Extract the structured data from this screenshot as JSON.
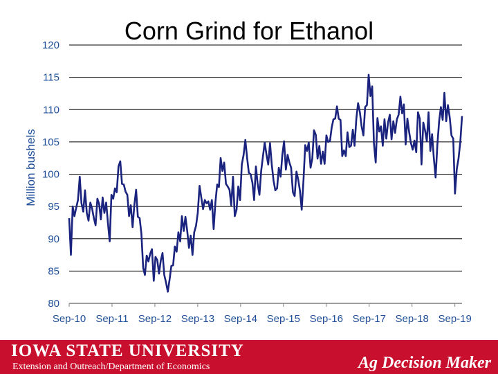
{
  "chart_data": {
    "type": "line",
    "title": "Corn Grind for Ethanol",
    "ylabel": "Million bushels",
    "xlabel": "",
    "ylim": [
      80,
      120
    ],
    "yticks": [
      80,
      85,
      90,
      95,
      100,
      105,
      110,
      115,
      120
    ],
    "xticks": [
      "Sep-10",
      "Sep-11",
      "Sep-12",
      "Sep-13",
      "Sep-14",
      "Sep-15",
      "Sep-16",
      "Sep-17",
      "Sep-18",
      "Sep-19"
    ],
    "x_start": "Sep-10",
    "x_end": "Nov-19",
    "grid": "horizontal",
    "line_color": "#1a237e",
    "series": [
      {
        "name": "",
        "values": [
          93.2,
          87.5,
          95.0,
          93.5,
          94.8,
          96.0,
          99.6,
          95.5,
          94.2,
          97.5,
          94.0,
          92.8,
          95.6,
          94.7,
          93.2,
          92.1,
          96.2,
          95.4,
          93.0,
          96.4,
          94.0,
          95.6,
          92.5,
          89.6,
          96.8,
          96.2,
          97.8,
          97.2,
          101.2,
          102.0,
          98.5,
          98.4,
          97.3,
          96.8,
          93.5,
          95.2,
          91.8,
          95.2,
          97.6,
          93.4,
          93.2,
          90.8,
          85.5,
          84.4,
          87.4,
          86.5,
          87.7,
          88.4,
          83.5,
          87.2,
          86.7,
          84.6,
          86.6,
          87.8,
          84.4,
          83.2,
          81.8,
          83.7,
          85.8,
          85.9,
          88.8,
          88.0,
          91.0,
          89.6,
          93.5,
          91.2,
          93.4,
          91.2,
          88.6,
          90.5,
          87.5,
          91.0,
          92.0,
          94.0,
          98.2,
          96.4,
          94.6,
          96.0,
          95.5,
          95.8,
          94.5,
          96.0,
          91.5,
          95.6,
          98.4,
          98.0,
          102.5,
          100.5,
          101.8,
          98.5,
          98.1,
          97.6,
          95.2,
          99.6,
          93.5,
          94.5,
          98.1,
          96.0,
          101.5,
          103.0,
          105.3,
          102.5,
          100.2,
          100.0,
          98.7,
          96.0,
          101.2,
          98.5,
          96.8,
          100.5,
          102.8,
          104.9,
          103.0,
          101.5,
          104.8,
          101.5,
          99.0,
          97.5,
          97.8,
          101.0,
          99.6,
          103.0,
          105.1,
          100.7,
          103.0,
          101.8,
          101.0,
          97.2,
          96.6,
          100.4,
          99.2,
          97.4,
          94.5,
          99.1,
          104.5,
          103.6,
          104.9,
          101.0,
          102.4,
          106.8,
          106.1,
          102.4,
          104.4,
          101.6,
          103.5,
          101.6,
          106.0,
          105.0,
          105.1,
          107.2,
          108.5,
          108.6,
          110.5,
          108.6,
          108.4,
          102.8,
          103.7,
          102.8,
          106.5,
          104.2,
          104.4,
          106.9,
          104.4,
          108.6,
          111.0,
          109.6,
          107.4,
          106.0,
          110.4,
          110.7,
          115.4,
          112.1,
          113.6,
          104.8,
          101.8,
          108.7,
          106.6,
          107.4,
          104.4,
          108.5,
          105.5,
          108.0,
          109.2,
          105.4,
          108.2,
          106.4,
          108.5,
          109.2,
          112.0,
          109.4,
          110.8,
          104.6,
          108.6,
          106.5,
          104.8,
          103.8,
          105.2,
          103.4,
          109.6,
          108.6,
          101.5,
          108.0,
          106.8,
          105.1,
          109.6,
          103.6,
          106.2,
          102.5,
          99.5,
          104.5,
          108.2,
          110.4,
          108.4,
          112.6,
          108.2,
          110.7,
          108.8,
          106.0,
          105.5,
          97.0,
          100.8,
          102.4,
          105.0,
          109.0
        ]
      }
    ]
  },
  "footer": {
    "university": "IOWA STATE UNIVERSITY",
    "department": "Extension and Outreach/Department of Economics",
    "tagline": "Ag Decision Maker",
    "bg_color": "#c8102e"
  }
}
